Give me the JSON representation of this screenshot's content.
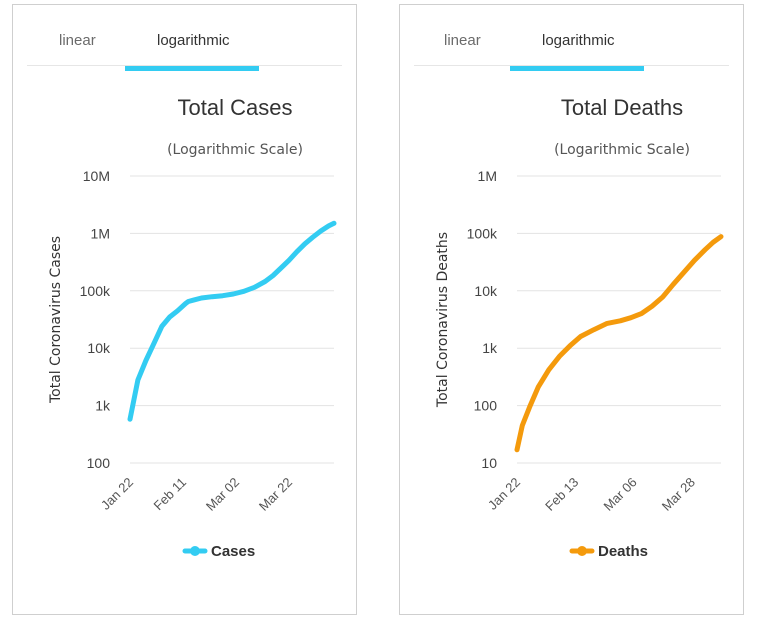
{
  "tabs": {
    "linear": "linear",
    "logarithmic": "logarithmic"
  },
  "accent_colors": {
    "tab_underline": "#33ccf2",
    "cases": "#33ccf2",
    "deaths": "#f49a0c"
  },
  "chart_data": [
    {
      "type": "line",
      "title": "Total Cases",
      "subtitle": "(Logarithmic Scale)",
      "ylabel": "Total Coronavirus Cases",
      "yscale": "log",
      "ylim": [
        100,
        10000000
      ],
      "ytick_labels": [
        "100",
        "1k",
        "10k",
        "100k",
        "1M",
        "10M"
      ],
      "ytick_values": [
        100,
        1000,
        10000,
        100000,
        1000000,
        10000000
      ],
      "xtick_labels": [
        "Jan 22",
        "Feb 11",
        "Mar 02",
        "Mar 22"
      ],
      "xtick_values": [
        "2020-01-22",
        "2020-02-11",
        "2020-03-02",
        "2020-03-22"
      ],
      "xlim": [
        "2020-01-22",
        "2020-04-08"
      ],
      "grid": true,
      "legend": "bottom-center",
      "series": [
        {
          "name": "Cases",
          "color": "#33ccf2",
          "x": [
            "2020-01-22",
            "2020-01-25",
            "2020-01-28",
            "2020-01-31",
            "2020-02-03",
            "2020-02-06",
            "2020-02-09",
            "2020-02-12",
            "2020-02-13",
            "2020-02-15",
            "2020-02-18",
            "2020-02-22",
            "2020-02-26",
            "2020-03-01",
            "2020-03-05",
            "2020-03-09",
            "2020-03-13",
            "2020-03-16",
            "2020-03-19",
            "2020-03-22",
            "2020-03-25",
            "2020-03-28",
            "2020-03-31",
            "2020-04-03",
            "2020-04-06",
            "2020-04-08"
          ],
          "y": [
            580,
            2800,
            6100,
            12000,
            24000,
            35000,
            45000,
            60000,
            65000,
            69000,
            75000,
            79000,
            82000,
            88000,
            98000,
            115000,
            145000,
            185000,
            250000,
            340000,
            480000,
            660000,
            860000,
            1100000,
            1350000,
            1500000
          ]
        }
      ]
    },
    {
      "type": "line",
      "title": "Total Deaths",
      "subtitle": "(Logarithmic Scale)",
      "ylabel": "Total Coronavirus Deaths",
      "yscale": "log",
      "ylim": [
        10,
        1000000
      ],
      "ytick_labels": [
        "10",
        "100",
        "1k",
        "10k",
        "100k",
        "1M"
      ],
      "ytick_values": [
        10,
        100,
        1000,
        10000,
        100000,
        1000000
      ],
      "xtick_labels": [
        "Jan 22",
        "Feb 13",
        "Mar 06",
        "Mar 28"
      ],
      "xtick_values": [
        "2020-01-22",
        "2020-02-13",
        "2020-03-06",
        "2020-03-28"
      ],
      "xlim": [
        "2020-01-22",
        "2020-04-08"
      ],
      "grid": true,
      "legend": "bottom-center",
      "series": [
        {
          "name": "Deaths",
          "color": "#f49a0c",
          "x": [
            "2020-01-22",
            "2020-01-24",
            "2020-01-27",
            "2020-01-30",
            "2020-02-03",
            "2020-02-07",
            "2020-02-11",
            "2020-02-15",
            "2020-02-20",
            "2020-02-25",
            "2020-03-01",
            "2020-03-05",
            "2020-03-09",
            "2020-03-13",
            "2020-03-17",
            "2020-03-21",
            "2020-03-25",
            "2020-03-29",
            "2020-04-02",
            "2020-04-05",
            "2020-04-08"
          ],
          "y": [
            17,
            45,
            100,
            210,
            420,
            720,
            1100,
            1600,
            2100,
            2700,
            3000,
            3400,
            4000,
            5400,
            7800,
            13000,
            21000,
            34000,
            52000,
            70000,
            88000
          ]
        }
      ]
    }
  ]
}
